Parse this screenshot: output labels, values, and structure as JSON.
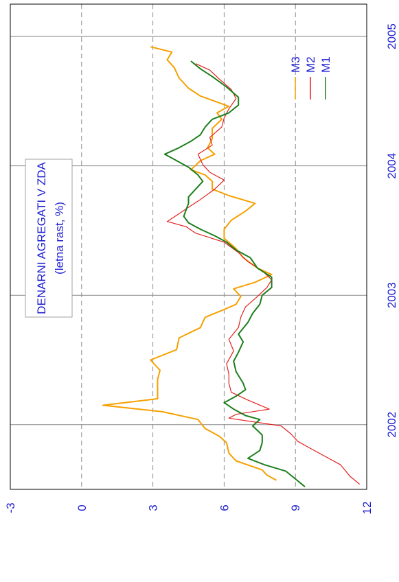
{
  "chart_data": {
    "type": "line",
    "orientation": "rotated-90",
    "title": "DENARNI AGREGATI V ZDA",
    "subtitle": "(letna rast, %)",
    "ylim": [
      -3,
      12
    ],
    "yticks": [
      -3,
      0,
      3,
      6,
      9,
      12
    ],
    "xlim": [
      2001.5,
      2005.25
    ],
    "xticks": [
      2002,
      2003,
      2004,
      2005
    ],
    "grid": true,
    "legend": "right",
    "colors": {
      "M1": "#1b7f1b",
      "M2": "#e32020",
      "M3": "#f5a000",
      "axis": "#1f1fd0"
    },
    "series": [
      {
        "name": "M3",
        "points": [
          [
            2001.57,
            8.2
          ],
          [
            2001.61,
            7.8
          ],
          [
            2001.65,
            7.6
          ],
          [
            2001.72,
            6.5
          ],
          [
            2001.78,
            6.2
          ],
          [
            2001.86,
            6.1
          ],
          [
            2001.91,
            5.8
          ],
          [
            2001.97,
            5.2
          ],
          [
            2002.04,
            4.9
          ],
          [
            2002.1,
            3.4
          ],
          [
            2002.15,
            0.9
          ],
          [
            2002.2,
            3.2
          ],
          [
            2002.27,
            3.2
          ],
          [
            2002.35,
            3.2
          ],
          [
            2002.42,
            3.3
          ],
          [
            2002.5,
            2.9
          ],
          [
            2002.58,
            4.0
          ],
          [
            2002.67,
            4.1
          ],
          [
            2002.75,
            5.0
          ],
          [
            2002.83,
            5.2
          ],
          [
            2002.89,
            6.0
          ],
          [
            2002.93,
            6.5
          ],
          [
            2002.99,
            6.7
          ],
          [
            2003.05,
            6.4
          ],
          [
            2003.1,
            7.3
          ],
          [
            2003.16,
            8.0
          ],
          [
            2003.21,
            7.4
          ],
          [
            2003.29,
            6.8
          ],
          [
            2003.36,
            6.5
          ],
          [
            2003.44,
            6.0
          ],
          [
            2003.51,
            6.0
          ],
          [
            2003.58,
            6.3
          ],
          [
            2003.65,
            6.9
          ],
          [
            2003.71,
            7.3
          ],
          [
            2003.77,
            6.2
          ],
          [
            2003.82,
            5.5
          ],
          [
            2003.88,
            5.5
          ],
          [
            2003.93,
            5.2
          ],
          [
            2003.97,
            4.6
          ],
          [
            2004.04,
            5.0
          ],
          [
            2004.09,
            5.6
          ],
          [
            2004.14,
            5.3
          ],
          [
            2004.21,
            5.5
          ],
          [
            2004.29,
            5.5
          ],
          [
            2004.36,
            5.9
          ],
          [
            2004.41,
            5.7
          ],
          [
            2004.46,
            6.2
          ],
          [
            2004.54,
            5.0
          ],
          [
            2004.6,
            4.5
          ],
          [
            2004.68,
            4.1
          ],
          [
            2004.76,
            3.9
          ],
          [
            2004.82,
            3.6
          ],
          [
            2004.88,
            3.8
          ],
          [
            2004.92,
            2.9
          ]
        ]
      },
      {
        "name": "M2",
        "points": [
          [
            2001.54,
            11.7
          ],
          [
            2001.6,
            11.3
          ],
          [
            2001.69,
            10.9
          ],
          [
            2001.81,
            9.7
          ],
          [
            2001.87,
            9.1
          ],
          [
            2001.93,
            8.8
          ],
          [
            2001.99,
            8.4
          ],
          [
            2002.05,
            6.2
          ],
          [
            2002.08,
            6.5
          ],
          [
            2002.12,
            7.9
          ],
          [
            2002.19,
            7.0
          ],
          [
            2002.25,
            6.3
          ],
          [
            2002.32,
            6.2
          ],
          [
            2002.39,
            6.2
          ],
          [
            2002.47,
            6.1
          ],
          [
            2002.57,
            6.4
          ],
          [
            2002.66,
            6.2
          ],
          [
            2002.75,
            6.6
          ],
          [
            2002.83,
            6.7
          ],
          [
            2002.91,
            6.9
          ],
          [
            2002.99,
            7.4
          ],
          [
            2003.06,
            7.8
          ],
          [
            2003.12,
            8.0
          ],
          [
            2003.19,
            7.6
          ],
          [
            2003.26,
            7.0
          ],
          [
            2003.33,
            6.6
          ],
          [
            2003.41,
            6.0
          ],
          [
            2003.48,
            4.8
          ],
          [
            2003.53,
            4.4
          ],
          [
            2003.57,
            3.6
          ],
          [
            2003.63,
            4.1
          ],
          [
            2003.68,
            4.5
          ],
          [
            2003.74,
            5.0
          ],
          [
            2003.82,
            5.6
          ],
          [
            2003.89,
            6.0
          ],
          [
            2003.95,
            5.4
          ],
          [
            2004.01,
            5.1
          ],
          [
            2004.09,
            4.9
          ],
          [
            2004.16,
            5.5
          ],
          [
            2004.22,
            5.4
          ],
          [
            2004.3,
            5.9
          ],
          [
            2004.37,
            6.0
          ],
          [
            2004.44,
            6.2
          ],
          [
            2004.52,
            6.5
          ],
          [
            2004.59,
            6.3
          ],
          [
            2004.67,
            5.8
          ],
          [
            2004.74,
            5.4
          ],
          [
            2004.79,
            4.8
          ]
        ]
      },
      {
        "name": "M1",
        "points": [
          [
            2001.52,
            9.4
          ],
          [
            2001.58,
            9.0
          ],
          [
            2001.64,
            8.6
          ],
          [
            2001.69,
            7.7
          ],
          [
            2001.74,
            7.0
          ],
          [
            2001.8,
            7.5
          ],
          [
            2001.86,
            7.6
          ],
          [
            2001.92,
            7.6
          ],
          [
            2001.99,
            7.2
          ],
          [
            2002.04,
            7.5
          ],
          [
            2002.07,
            6.9
          ],
          [
            2002.12,
            6.4
          ],
          [
            2002.17,
            6.0
          ],
          [
            2002.22,
            6.5
          ],
          [
            2002.27,
            6.9
          ],
          [
            2002.32,
            6.8
          ],
          [
            2002.41,
            6.5
          ],
          [
            2002.49,
            6.4
          ],
          [
            2002.56,
            6.6
          ],
          [
            2002.64,
            6.8
          ],
          [
            2002.7,
            6.6
          ],
          [
            2002.79,
            7.0
          ],
          [
            2002.86,
            7.2
          ],
          [
            2002.93,
            7.5
          ],
          [
            2003.0,
            7.6
          ],
          [
            2003.06,
            8.0
          ],
          [
            2003.14,
            8.0
          ],
          [
            2003.21,
            7.4
          ],
          [
            2003.29,
            7.1
          ],
          [
            2003.35,
            6.5
          ],
          [
            2003.41,
            6.1
          ],
          [
            2003.46,
            5.6
          ],
          [
            2003.51,
            5.0
          ],
          [
            2003.56,
            4.5
          ],
          [
            2003.61,
            4.3
          ],
          [
            2003.66,
            4.4
          ],
          [
            2003.71,
            4.5
          ],
          [
            2003.76,
            4.5
          ],
          [
            2003.82,
            4.8
          ],
          [
            2003.88,
            5.1
          ],
          [
            2003.93,
            4.9
          ],
          [
            2003.99,
            4.5
          ],
          [
            2004.04,
            4.0
          ],
          [
            2004.09,
            3.5
          ],
          [
            2004.14,
            4.1
          ],
          [
            2004.19,
            4.6
          ],
          [
            2004.24,
            5.0
          ],
          [
            2004.3,
            5.2
          ],
          [
            2004.36,
            5.5
          ],
          [
            2004.41,
            6.2
          ],
          [
            2004.47,
            6.6
          ],
          [
            2004.53,
            6.6
          ],
          [
            2004.61,
            6.1
          ],
          [
            2004.69,
            5.5
          ],
          [
            2004.75,
            5.0
          ],
          [
            2004.81,
            4.6
          ]
        ]
      }
    ]
  }
}
